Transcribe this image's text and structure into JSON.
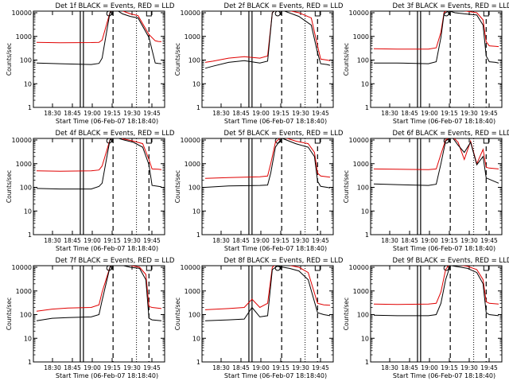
{
  "figure": {
    "xlabel": "Start Time (06-Feb-07 18:18:40)",
    "ylabel": "Counts/sec"
  },
  "colors": {
    "events": "#000000",
    "lld": "#e00000",
    "axes": "#000000"
  },
  "chart_data": [
    {
      "type": "line",
      "title": "Det 1f BLACK = Events, RED = LLD",
      "x_ticks": [
        "18:30",
        "18:45",
        "19:00",
        "19:15",
        "19:30",
        "19:45"
      ],
      "y_ticks": [
        "1",
        "10",
        "100",
        "1000",
        "10000"
      ],
      "ylog": true,
      "ylim": [
        1,
        10000
      ],
      "x_minutes": [
        0,
        15,
        35,
        40,
        42,
        47,
        49,
        52,
        55,
        60,
        65,
        72,
        76,
        78,
        80
      ],
      "series": [
        {
          "name": "Events",
          "values": [
            75,
            70,
            65,
            72,
            120,
            10000,
            14000,
            12000,
            9000,
            7000,
            6000,
            900,
            75,
            72,
            70
          ]
        },
        {
          "name": "LLD",
          "values": [
            560,
            540,
            550,
            560,
            700,
            10000,
            15000,
            14000,
            12000,
            9000,
            7500,
            1200,
            650,
            610,
            600
          ]
        }
      ]
    },
    {
      "type": "line",
      "title": "Det 2f BLACK = Events, RED = LLD",
      "x_ticks": [
        "18:30",
        "18:45",
        "19:00",
        "19:15",
        "19:30",
        "19:45"
      ],
      "y_ticks": [
        "1",
        "10",
        "100",
        "1000",
        "10000"
      ],
      "ylog": true,
      "ylim": [
        1,
        10000
      ],
      "x_minutes": [
        0,
        5,
        15,
        25,
        35,
        40,
        43,
        46,
        52,
        60,
        68,
        72,
        74,
        78,
        80
      ],
      "series": [
        {
          "name": "Events",
          "values": [
            45,
            55,
            80,
            95,
            75,
            90,
            10000,
            15000,
            11000,
            7000,
            3000,
            200,
            70,
            65,
            60
          ]
        },
        {
          "name": "LLD",
          "values": [
            80,
            90,
            120,
            140,
            120,
            150,
            10000,
            15000,
            13000,
            10000,
            6000,
            400,
            110,
            100,
            95
          ]
        }
      ]
    },
    {
      "type": "line",
      "title": "Det 3f BLACK = Events, RED = LLD",
      "x_ticks": [
        "18:30",
        "18:45",
        "19:00",
        "19:15",
        "19:30",
        "19:45"
      ],
      "y_ticks": [
        "1",
        "10",
        "100",
        "1000",
        "10000"
      ],
      "ylog": true,
      "ylim": [
        1,
        10000
      ],
      "x_minutes": [
        0,
        15,
        35,
        40,
        43,
        45,
        48,
        52,
        58,
        66,
        70,
        72,
        74,
        78,
        80
      ],
      "series": [
        {
          "name": "Events",
          "values": [
            75,
            75,
            70,
            85,
            900,
            9000,
            12000,
            10000,
            9000,
            8000,
            3000,
            150,
            85,
            80,
            75
          ]
        },
        {
          "name": "LLD",
          "values": [
            300,
            290,
            290,
            330,
            1500,
            10000,
            15000,
            13000,
            12000,
            10000,
            5000,
            600,
            400,
            380,
            370
          ]
        }
      ]
    },
    {
      "type": "line",
      "title": "Det 4f BLACK = Events, RED = LLD",
      "x_ticks": [
        "18:30",
        "18:45",
        "19:00",
        "19:15",
        "19:30",
        "19:45"
      ],
      "y_ticks": [
        "1",
        "10",
        "100",
        "1000",
        "10000"
      ],
      "ylog": true,
      "ylim": [
        1,
        10000
      ],
      "x_minutes": [
        0,
        15,
        35,
        40,
        42,
        47,
        49,
        52,
        56,
        62,
        68,
        72,
        74,
        78,
        80
      ],
      "series": [
        {
          "name": "Events",
          "values": [
            90,
            85,
            85,
            110,
            150,
            10000,
            14000,
            12000,
            10000,
            8000,
            5000,
            900,
            120,
            110,
            105
          ]
        },
        {
          "name": "LLD",
          "values": [
            500,
            480,
            500,
            540,
            800,
            10000,
            15000,
            14000,
            11000,
            9000,
            7000,
            1500,
            600,
            580,
            560
          ]
        }
      ]
    },
    {
      "type": "line",
      "title": "Det 5f BLACK = Events, RED = LLD",
      "x_ticks": [
        "18:30",
        "18:45",
        "19:00",
        "19:15",
        "19:30",
        "19:45"
      ],
      "y_ticks": [
        "1",
        "10",
        "100",
        "1000",
        "10000"
      ],
      "ylog": true,
      "ylim": [
        1,
        10000
      ],
      "x_minutes": [
        0,
        15,
        35,
        40,
        42,
        45,
        49,
        52,
        58,
        66,
        70,
        72,
        74,
        78,
        80
      ],
      "series": [
        {
          "name": "Events",
          "values": [
            100,
            115,
            120,
            125,
            400,
            5000,
            12000,
            10000,
            7000,
            5000,
            2000,
            180,
            110,
            100,
            95
          ]
        },
        {
          "name": "LLD",
          "values": [
            240,
            260,
            280,
            300,
            1000,
            8000,
            14000,
            12000,
            9000,
            7000,
            3000,
            400,
            300,
            280,
            270
          ]
        }
      ]
    },
    {
      "type": "line",
      "title": "Det 6f BLACK = Events, RED = LLD",
      "x_ticks": [
        "18:30",
        "18:45",
        "19:00",
        "19:15",
        "19:30",
        "19:45"
      ],
      "y_ticks": [
        "1",
        "10",
        "100",
        "1000",
        "10000"
      ],
      "ylog": true,
      "ylim": [
        1,
        10000
      ],
      "x_minutes": [
        0,
        15,
        35,
        40,
        43,
        46,
        50,
        54,
        58,
        62,
        66,
        70,
        72,
        74,
        80
      ],
      "series": [
        {
          "name": "Events",
          "values": [
            140,
            130,
            120,
            135,
            1000,
            9000,
            14000,
            6000,
            3000,
            8000,
            900,
            2000,
            250,
            220,
            150
          ]
        },
        {
          "name": "LLD",
          "values": [
            600,
            580,
            560,
            600,
            2500,
            10000,
            15000,
            8000,
            1500,
            9000,
            1000,
            4000,
            700,
            650,
            600
          ]
        }
      ]
    },
    {
      "type": "line",
      "title": "Det 7f BLACK = Events, RED = LLD",
      "x_ticks": [
        "18:30",
        "18:45",
        "19:00",
        "19:15",
        "19:30",
        "19:45"
      ],
      "y_ticks": [
        "1",
        "10",
        "100",
        "1000",
        "10000"
      ],
      "ylog": true,
      "ylim": [
        1,
        10000
      ],
      "x_minutes": [
        0,
        10,
        20,
        35,
        40,
        42,
        47,
        49,
        55,
        60,
        66,
        70,
        72,
        74,
        80
      ],
      "series": [
        {
          "name": "Events",
          "values": [
            55,
            70,
            75,
            80,
            100,
            400,
            10000,
            14000,
            12000,
            10000,
            9000,
            3000,
            70,
            60,
            55
          ]
        },
        {
          "name": "LLD",
          "values": [
            140,
            170,
            190,
            200,
            260,
            900,
            10000,
            15000,
            14000,
            12000,
            10000,
            5000,
            220,
            200,
            180
          ]
        }
      ]
    },
    {
      "type": "line",
      "title": "Det 8f BLACK = Events, RED = LLD",
      "x_ticks": [
        "18:30",
        "18:45",
        "19:00",
        "19:15",
        "19:30",
        "19:45"
      ],
      "y_ticks": [
        "1",
        "10",
        "100",
        "1000",
        "10000"
      ],
      "ylog": true,
      "ylim": [
        1,
        10000
      ],
      "x_minutes": [
        0,
        15,
        25,
        30,
        35,
        40,
        43,
        46,
        50,
        54,
        60,
        66,
        72,
        76,
        80
      ],
      "series": [
        {
          "name": "Events",
          "values": [
            55,
            60,
            65,
            200,
            80,
            90,
            8000,
            11000,
            10000,
            9000,
            7000,
            3000,
            120,
            100,
            90
          ]
        },
        {
          "name": "LLD",
          "values": [
            160,
            180,
            200,
            450,
            200,
            300,
            10000,
            15000,
            14000,
            12000,
            10000,
            6000,
            300,
            260,
            250
          ]
        }
      ]
    },
    {
      "type": "line",
      "title": "Det 9f BLACK = Events, RED = LLD",
      "x_ticks": [
        "18:30",
        "18:45",
        "19:00",
        "19:15",
        "19:30",
        "19:45"
      ],
      "y_ticks": [
        "1",
        "10",
        "100",
        "1000",
        "10000"
      ],
      "ylog": true,
      "ylim": [
        1,
        10000
      ],
      "x_minutes": [
        0,
        15,
        35,
        40,
        43,
        46,
        49,
        52,
        56,
        60,
        66,
        70,
        72,
        74,
        80
      ],
      "series": [
        {
          "name": "Events",
          "values": [
            95,
            90,
            90,
            100,
            300,
            3000,
            12000,
            11000,
            10000,
            9000,
            6000,
            2000,
            120,
            100,
            90
          ]
        },
        {
          "name": "LLD",
          "values": [
            280,
            270,
            280,
            300,
            900,
            8000,
            15000,
            13000,
            12000,
            11000,
            8000,
            3000,
            350,
            300,
            280
          ]
        }
      ]
    }
  ]
}
